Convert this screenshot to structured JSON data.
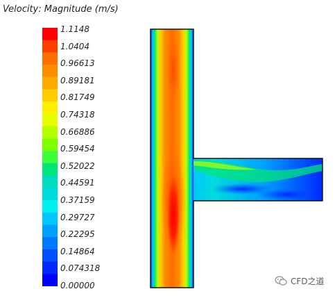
{
  "legend": {
    "title": "Velocity: Magnitude (m/s)",
    "ticks": [
      "1.1148",
      "1.0404",
      "0.96613",
      "0.89181",
      "0.81749",
      "0.74318",
      "0.66886",
      "0.59454",
      "0.52022",
      "0.44591",
      "0.37159",
      "0.29727",
      "0.22295",
      "0.14864",
      "0.074318",
      "0.00000"
    ],
    "band_colors": [
      "#ff0000",
      "#ff3c00",
      "#ff6e00",
      "#ff8c00",
      "#ffaa00",
      "#ffcc00",
      "#ffee00",
      "#e6ff00",
      "#b4ff00",
      "#7cff00",
      "#3cff3c",
      "#00e678",
      "#00dcbe",
      "#00dcdc",
      "#00f0f0",
      "#00c8ff",
      "#00a0ff",
      "#0078ff",
      "#0050ff",
      "#0028ff",
      "#0000ff"
    ]
  },
  "watermark": {
    "text": "CFD之道",
    "icon": "wechat-icon"
  }
}
